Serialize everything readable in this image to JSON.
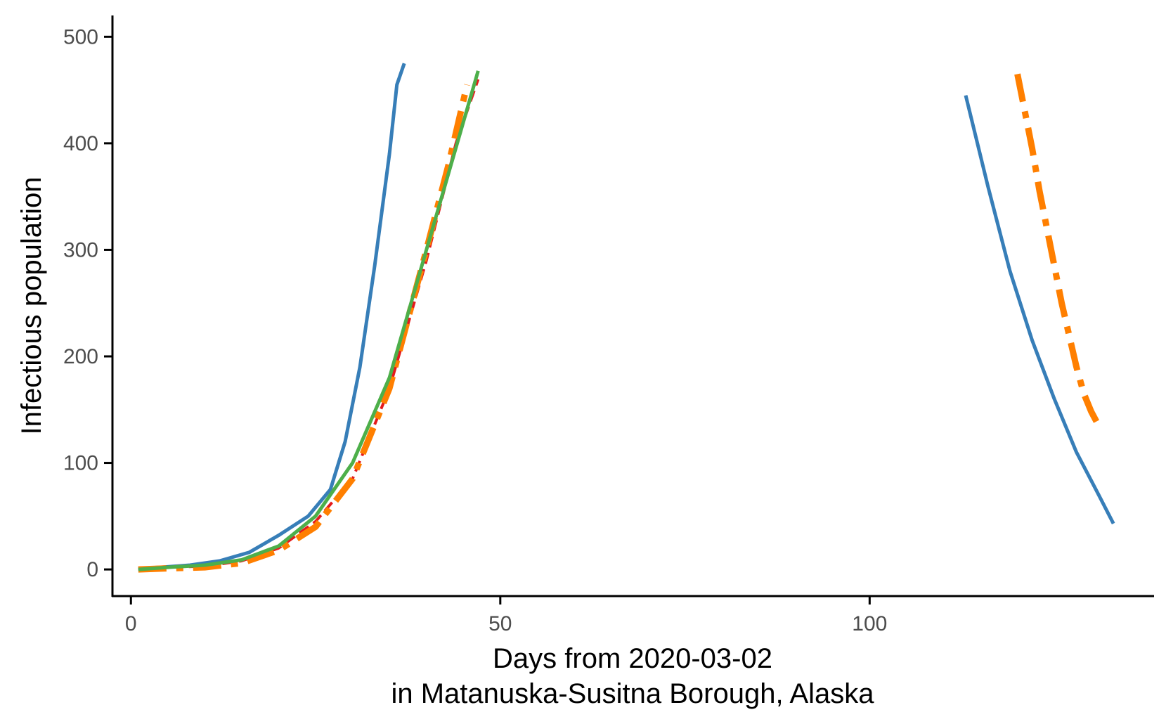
{
  "chart_data": {
    "type": "line",
    "title": "",
    "xlabel_line1": "Days from 2020-03-02",
    "xlabel_line2": "in Matanuska-Susitna Borough, Alaska",
    "ylabel": "Infectious population",
    "xlim": [
      -2.5,
      138.5
    ],
    "ylim": [
      -25,
      520
    ],
    "x_ticks": [
      0,
      50,
      100
    ],
    "y_ticks": [
      0,
      100,
      200,
      300,
      400,
      500
    ],
    "grid": false,
    "legend": "none",
    "series": [
      {
        "color": "#377eb8",
        "dash": "solid",
        "segments": [
          {
            "x": [
              1,
              4,
              8,
              12,
              16,
              20,
              24,
              27,
              29,
              31,
              33,
              35,
              36,
              37
            ],
            "y": [
              1,
              2,
              4,
              8,
              16,
              32,
              50,
              75,
              120,
              190,
              285,
              390,
              455,
              475
            ]
          },
          {
            "x": [
              113,
              116,
              119,
              122,
              125,
              128,
              131,
              133
            ],
            "y": [
              445,
              360,
              280,
              215,
              160,
              110,
              70,
              43
            ]
          }
        ]
      },
      {
        "color": "#e41a1c",
        "dash": "dashed",
        "segments": [
          {
            "x": [
              1,
              5,
              10,
              15,
              20,
              25,
              30,
              35,
              40,
              44,
              47
            ],
            "y": [
              0,
              2,
              3,
              8,
              20,
              45,
              85,
              170,
              290,
              400,
              460
            ]
          }
        ]
      },
      {
        "color": "#ff7f00",
        "dash": "dashdot",
        "segments": [
          {
            "x": [
              1,
              5,
              10,
              15,
              20,
              25,
              30,
              35,
              40,
              43,
              44,
              45,
              45.5
            ],
            "y": [
              0,
              1,
              2,
              6,
              18,
              40,
              85,
              170,
              300,
              380,
              410,
              440,
              455
            ]
          },
          {
            "x": [
              120,
              121,
              122,
              123,
              124,
              125,
              126,
              127,
              128,
              129,
              130,
              131
            ],
            "y": [
              465,
              430,
              395,
              355,
              320,
              285,
              250,
              220,
              190,
              165,
              148,
              135
            ]
          }
        ]
      },
      {
        "color": "#4daf4a",
        "dash": "solid",
        "segments": [
          {
            "x": [
              1,
              5,
              10,
              15,
              20,
              25,
              30,
              35,
              40,
              45,
              47
            ],
            "y": [
              0,
              2,
              4,
              9,
              22,
              50,
              100,
              180,
              300,
              420,
              468
            ]
          }
        ]
      }
    ]
  }
}
